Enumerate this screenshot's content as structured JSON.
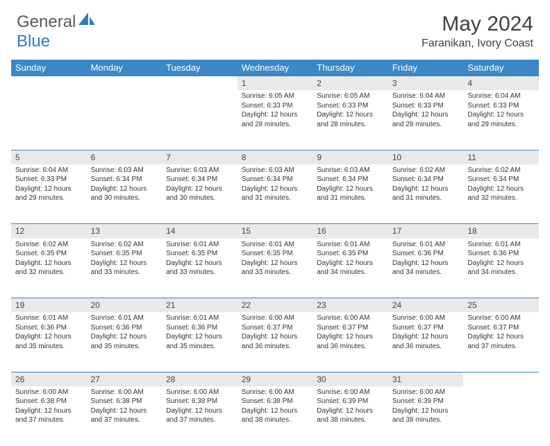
{
  "logo": {
    "text1": "General",
    "text2": "Blue"
  },
  "title": "May 2024",
  "location": "Faranikan, Ivory Coast",
  "colors": {
    "header_bg": "#3c87c7",
    "daynum_bg": "#e9e9e9",
    "text": "#333333"
  },
  "days_of_week": [
    "Sunday",
    "Monday",
    "Tuesday",
    "Wednesday",
    "Thursday",
    "Friday",
    "Saturday"
  ],
  "weeks": [
    [
      null,
      null,
      null,
      {
        "n": "1",
        "sr": "6:05 AM",
        "ss": "6:33 PM",
        "dl": "12 hours and 28 minutes."
      },
      {
        "n": "2",
        "sr": "6:05 AM",
        "ss": "6:33 PM",
        "dl": "12 hours and 28 minutes."
      },
      {
        "n": "3",
        "sr": "6:04 AM",
        "ss": "6:33 PM",
        "dl": "12 hours and 28 minutes."
      },
      {
        "n": "4",
        "sr": "6:04 AM",
        "ss": "6:33 PM",
        "dl": "12 hours and 29 minutes."
      }
    ],
    [
      {
        "n": "5",
        "sr": "6:04 AM",
        "ss": "6:33 PM",
        "dl": "12 hours and 29 minutes."
      },
      {
        "n": "6",
        "sr": "6:03 AM",
        "ss": "6:34 PM",
        "dl": "12 hours and 30 minutes."
      },
      {
        "n": "7",
        "sr": "6:03 AM",
        "ss": "6:34 PM",
        "dl": "12 hours and 30 minutes."
      },
      {
        "n": "8",
        "sr": "6:03 AM",
        "ss": "6:34 PM",
        "dl": "12 hours and 31 minutes."
      },
      {
        "n": "9",
        "sr": "6:03 AM",
        "ss": "6:34 PM",
        "dl": "12 hours and 31 minutes."
      },
      {
        "n": "10",
        "sr": "6:02 AM",
        "ss": "6:34 PM",
        "dl": "12 hours and 31 minutes."
      },
      {
        "n": "11",
        "sr": "6:02 AM",
        "ss": "6:34 PM",
        "dl": "12 hours and 32 minutes."
      }
    ],
    [
      {
        "n": "12",
        "sr": "6:02 AM",
        "ss": "6:35 PM",
        "dl": "12 hours and 32 minutes."
      },
      {
        "n": "13",
        "sr": "6:02 AM",
        "ss": "6:35 PM",
        "dl": "12 hours and 33 minutes."
      },
      {
        "n": "14",
        "sr": "6:01 AM",
        "ss": "6:35 PM",
        "dl": "12 hours and 33 minutes."
      },
      {
        "n": "15",
        "sr": "6:01 AM",
        "ss": "6:35 PM",
        "dl": "12 hours and 33 minutes."
      },
      {
        "n": "16",
        "sr": "6:01 AM",
        "ss": "6:35 PM",
        "dl": "12 hours and 34 minutes."
      },
      {
        "n": "17",
        "sr": "6:01 AM",
        "ss": "6:36 PM",
        "dl": "12 hours and 34 minutes."
      },
      {
        "n": "18",
        "sr": "6:01 AM",
        "ss": "6:36 PM",
        "dl": "12 hours and 34 minutes."
      }
    ],
    [
      {
        "n": "19",
        "sr": "6:01 AM",
        "ss": "6:36 PM",
        "dl": "12 hours and 35 minutes."
      },
      {
        "n": "20",
        "sr": "6:01 AM",
        "ss": "6:36 PM",
        "dl": "12 hours and 35 minutes."
      },
      {
        "n": "21",
        "sr": "6:01 AM",
        "ss": "6:36 PM",
        "dl": "12 hours and 35 minutes."
      },
      {
        "n": "22",
        "sr": "6:00 AM",
        "ss": "6:37 PM",
        "dl": "12 hours and 36 minutes."
      },
      {
        "n": "23",
        "sr": "6:00 AM",
        "ss": "6:37 PM",
        "dl": "12 hours and 36 minutes."
      },
      {
        "n": "24",
        "sr": "6:00 AM",
        "ss": "6:37 PM",
        "dl": "12 hours and 36 minutes."
      },
      {
        "n": "25",
        "sr": "6:00 AM",
        "ss": "6:37 PM",
        "dl": "12 hours and 37 minutes."
      }
    ],
    [
      {
        "n": "26",
        "sr": "6:00 AM",
        "ss": "6:38 PM",
        "dl": "12 hours and 37 minutes."
      },
      {
        "n": "27",
        "sr": "6:00 AM",
        "ss": "6:38 PM",
        "dl": "12 hours and 37 minutes."
      },
      {
        "n": "28",
        "sr": "6:00 AM",
        "ss": "6:38 PM",
        "dl": "12 hours and 37 minutes."
      },
      {
        "n": "29",
        "sr": "6:00 AM",
        "ss": "6:38 PM",
        "dl": "12 hours and 38 minutes."
      },
      {
        "n": "30",
        "sr": "6:00 AM",
        "ss": "6:39 PM",
        "dl": "12 hours and 38 minutes."
      },
      {
        "n": "31",
        "sr": "6:00 AM",
        "ss": "6:39 PM",
        "dl": "12 hours and 38 minutes."
      },
      null
    ]
  ],
  "labels": {
    "sunrise": "Sunrise:",
    "sunset": "Sunset:",
    "daylight": "Daylight:"
  }
}
